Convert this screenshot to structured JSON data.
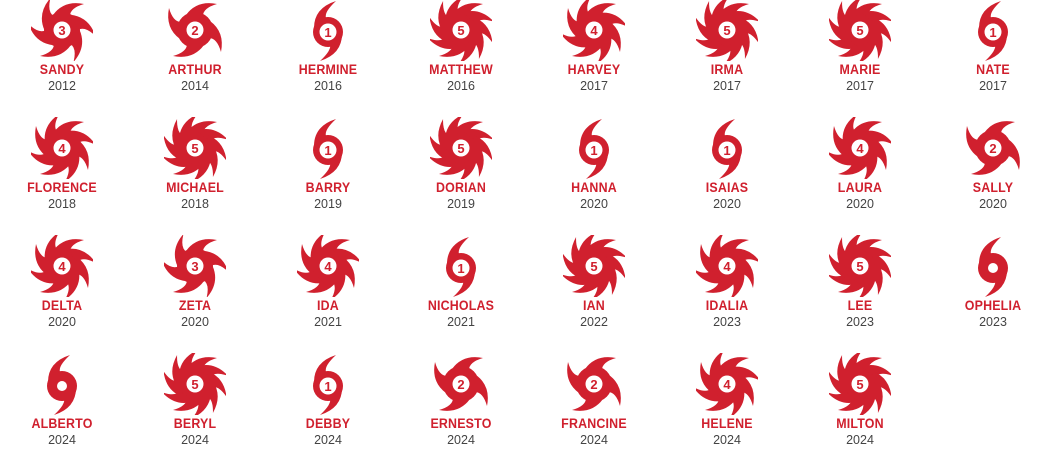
{
  "colors": {
    "accent": "#d0202e",
    "year_text": "#444444"
  },
  "storms": [
    {
      "name": "SANDY",
      "year": "2012",
      "category": "3"
    },
    {
      "name": "ARTHUR",
      "year": "2014",
      "category": "2"
    },
    {
      "name": "HERMINE",
      "year": "2016",
      "category": "1"
    },
    {
      "name": "MATTHEW",
      "year": "2016",
      "category": "5"
    },
    {
      "name": "HARVEY",
      "year": "2017",
      "category": "4"
    },
    {
      "name": "IRMA",
      "year": "2017",
      "category": "5"
    },
    {
      "name": "MARIE",
      "year": "2017",
      "category": "5"
    },
    {
      "name": "NATE",
      "year": "2017",
      "category": "1"
    },
    {
      "name": "FLORENCE",
      "year": "2018",
      "category": "4"
    },
    {
      "name": "MICHAEL",
      "year": "2018",
      "category": "5"
    },
    {
      "name": "BARRY",
      "year": "2019",
      "category": "1"
    },
    {
      "name": "DORIAN",
      "year": "2019",
      "category": "5"
    },
    {
      "name": "HANNA",
      "year": "2020",
      "category": "1"
    },
    {
      "name": "ISAIAS",
      "year": "2020",
      "category": "1"
    },
    {
      "name": "LAURA",
      "year": "2020",
      "category": "4"
    },
    {
      "name": "SALLY",
      "year": "2020",
      "category": "2"
    },
    {
      "name": "DELTA",
      "year": "2020",
      "category": "4"
    },
    {
      "name": "ZETA",
      "year": "2020",
      "category": "3"
    },
    {
      "name": "IDA",
      "year": "2021",
      "category": "4"
    },
    {
      "name": "NICHOLAS",
      "year": "2021",
      "category": "1"
    },
    {
      "name": "IAN",
      "year": "2022",
      "category": "5"
    },
    {
      "name": "IDALIA",
      "year": "2023",
      "category": "4"
    },
    {
      "name": "LEE",
      "year": "2023",
      "category": "5"
    },
    {
      "name": "OPHELIA",
      "year": "2023",
      "category": null
    },
    {
      "name": "ALBERTO",
      "year": "2024",
      "category": null
    },
    {
      "name": "BERYL",
      "year": "2024",
      "category": "5"
    },
    {
      "name": "DEBBY",
      "year": "2024",
      "category": "1"
    },
    {
      "name": "ERNESTO",
      "year": "2024",
      "category": "2"
    },
    {
      "name": "FRANCINE",
      "year": "2024",
      "category": "2"
    },
    {
      "name": "HELENE",
      "year": "2024",
      "category": "4"
    },
    {
      "name": "MILTON",
      "year": "2024",
      "category": "5"
    }
  ]
}
